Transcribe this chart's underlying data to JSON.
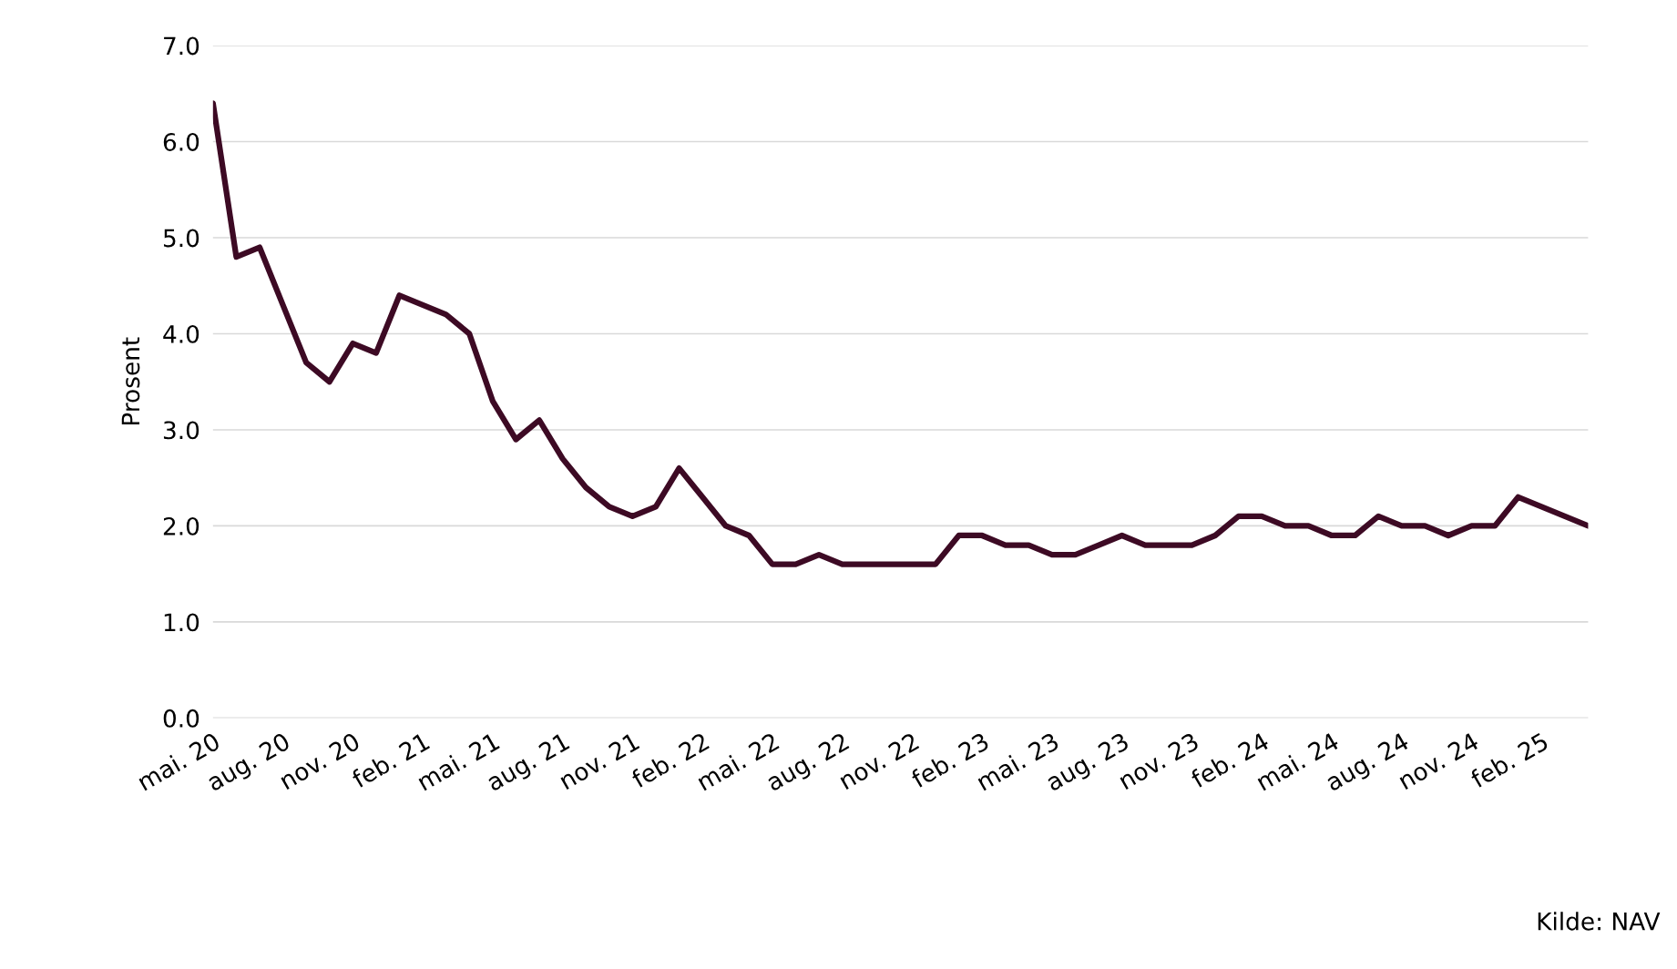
{
  "chart_data": {
    "type": "line",
    "ylabel": "Prosent",
    "categories": [
      "mai. 20",
      null,
      null,
      "aug. 20",
      null,
      null,
      "nov. 20",
      null,
      null,
      "feb. 21",
      null,
      null,
      "mai. 21",
      null,
      null,
      "aug. 21",
      null,
      null,
      "nov. 21",
      null,
      null,
      "feb. 22",
      null,
      null,
      "mai. 22",
      null,
      null,
      "aug. 22",
      null,
      null,
      "nov. 22",
      null,
      null,
      "feb. 23",
      null,
      null,
      "mai. 23",
      null,
      null,
      "aug. 23",
      null,
      null,
      "nov. 23",
      null,
      null,
      "feb. 24",
      null,
      null,
      "mai. 24",
      null,
      null,
      "aug. 24",
      null,
      null,
      "nov. 24",
      null,
      null,
      "feb. 25",
      null,
      null
    ],
    "series": [
      {
        "color": "#3d0a24",
        "values": [
          6.4,
          4.8,
          4.9,
          4.3,
          3.7,
          3.5,
          3.9,
          3.8,
          4.4,
          4.3,
          4.2,
          4.0,
          3.3,
          2.9,
          3.1,
          2.7,
          2.4,
          2.2,
          2.1,
          2.2,
          2.6,
          2.3,
          2.0,
          1.9,
          1.6,
          1.6,
          1.7,
          1.6,
          1.6,
          1.6,
          1.6,
          1.6,
          1.9,
          1.9,
          1.8,
          1.8,
          1.7,
          1.7,
          1.8,
          1.9,
          1.8,
          1.8,
          1.8,
          1.9,
          2.1,
          2.1,
          2.0,
          2.0,
          1.9,
          1.9,
          2.1,
          2.0,
          2.0,
          1.9,
          2.0,
          2.0,
          2.3,
          2.2,
          2.1,
          2.0
        ]
      }
    ],
    "ylim": [
      0,
      7
    ],
    "yticks": [
      {
        "value": 0,
        "label": "0.0"
      },
      {
        "value": 1,
        "label": "1.0"
      },
      {
        "value": 2,
        "label": "2.0"
      },
      {
        "value": 3,
        "label": "3.0"
      },
      {
        "value": 4,
        "label": "4.0"
      },
      {
        "value": 5,
        "label": "5.0"
      },
      {
        "value": 6,
        "label": "6.0"
      },
      {
        "value": 7,
        "label": "7.0"
      }
    ],
    "grid": "y",
    "marker": "none",
    "line_style": "solid",
    "annotations": [
      "Kilde: NAV"
    ]
  }
}
